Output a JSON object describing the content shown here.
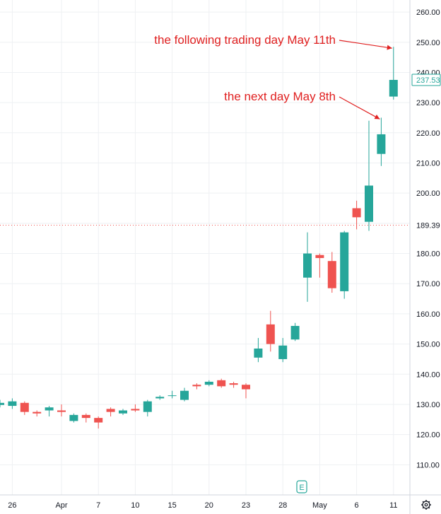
{
  "chart_data": {
    "type": "candlestick",
    "ylim": [
      100,
      264
    ],
    "y_ticks": [
      "110.00",
      "120.00",
      "130.00",
      "140.00",
      "150.00",
      "160.00",
      "170.00",
      "180.00",
      "190.00",
      "200.00",
      "210.00",
      "220.00",
      "230.00",
      "240.00",
      "250.00",
      "260.00"
    ],
    "x_ticks": [
      "26",
      "Apr",
      "7",
      "10",
      "15",
      "20",
      "23",
      "28",
      "May",
      "6",
      "11"
    ],
    "candles": [
      {
        "o": 129.8,
        "h": 131.5,
        "l": 129.0,
        "c": 130.5
      },
      {
        "o": 129.5,
        "h": 132.0,
        "l": 128.5,
        "c": 131.0
      },
      {
        "o": 130.5,
        "h": 131.0,
        "l": 126.5,
        "c": 127.5
      },
      {
        "o": 127.5,
        "h": 128.0,
        "l": 126.0,
        "c": 127.0
      },
      {
        "o": 128.0,
        "h": 129.5,
        "l": 126.0,
        "c": 129.0
      },
      {
        "o": 128.0,
        "h": 130.0,
        "l": 126.0,
        "c": 127.5
      },
      {
        "o": 124.5,
        "h": 127.0,
        "l": 124.0,
        "c": 126.5
      },
      {
        "o": 126.5,
        "h": 127.0,
        "l": 124.0,
        "c": 125.5
      },
      {
        "o": 125.5,
        "h": 126.0,
        "l": 122.0,
        "c": 124.0
      },
      {
        "o": 128.5,
        "h": 129.0,
        "l": 126.0,
        "c": 127.5
      },
      {
        "o": 127.0,
        "h": 128.5,
        "l": 126.5,
        "c": 128.0
      },
      {
        "o": 128.5,
        "h": 130.0,
        "l": 127.5,
        "c": 128.0
      },
      {
        "o": 127.5,
        "h": 131.5,
        "l": 126.0,
        "c": 131.0
      },
      {
        "o": 132.0,
        "h": 133.0,
        "l": 131.5,
        "c": 132.5
      },
      {
        "o": 133.0,
        "h": 134.5,
        "l": 132.0,
        "c": 133.0
      },
      {
        "o": 131.5,
        "h": 135.5,
        "l": 131.0,
        "c": 134.5
      },
      {
        "o": 136.5,
        "h": 137.0,
        "l": 135.0,
        "c": 136.0
      },
      {
        "o": 136.5,
        "h": 138.0,
        "l": 136.0,
        "c": 137.5
      },
      {
        "o": 138.0,
        "h": 138.5,
        "l": 135.5,
        "c": 136.0
      },
      {
        "o": 137.0,
        "h": 137.5,
        "l": 135.5,
        "c": 136.5
      },
      {
        "o": 136.5,
        "h": 137.0,
        "l": 132.0,
        "c": 135.0
      },
      {
        "o": 145.5,
        "h": 152.0,
        "l": 144.0,
        "c": 148.5
      },
      {
        "o": 156.5,
        "h": 161.0,
        "l": 147.5,
        "c": 150.0
      },
      {
        "o": 145.0,
        "h": 152.0,
        "l": 144.0,
        "c": 149.5
      },
      {
        "o": 151.5,
        "h": 157.0,
        "l": 151.0,
        "c": 156.0
      },
      {
        "o": 172.0,
        "h": 187.0,
        "l": 164.0,
        "c": 180.0
      },
      {
        "o": 179.5,
        "h": 180.0,
        "l": 172.0,
        "c": 178.5
      },
      {
        "o": 177.5,
        "h": 180.5,
        "l": 167.0,
        "c": 168.5
      },
      {
        "o": 167.5,
        "h": 187.5,
        "l": 165.0,
        "c": 187.0
      },
      {
        "o": 195.0,
        "h": 197.5,
        "l": 188.0,
        "c": 192.0
      },
      {
        "o": 190.5,
        "h": 224.0,
        "l": 187.5,
        "c": 202.5
      },
      {
        "o": 213.0,
        "h": 225.0,
        "l": 209.0,
        "c": 219.5
      },
      {
        "o": 232.0,
        "h": 248.5,
        "l": 231.0,
        "c": 237.53
      }
    ],
    "up_color": "#26a69a",
    "down_color": "#ef5350",
    "last_price_label": "237.53",
    "ref_price_label": "189.39",
    "ref_price": 189.39,
    "annotations": [
      {
        "text": "the following trading day May 11th",
        "candle_index": 32
      },
      {
        "text": "the next day May 8th",
        "candle_index": 31
      }
    ],
    "grid": true
  },
  "ui": {
    "earnings_badge": "E",
    "settings_icon": "gear-icon"
  }
}
